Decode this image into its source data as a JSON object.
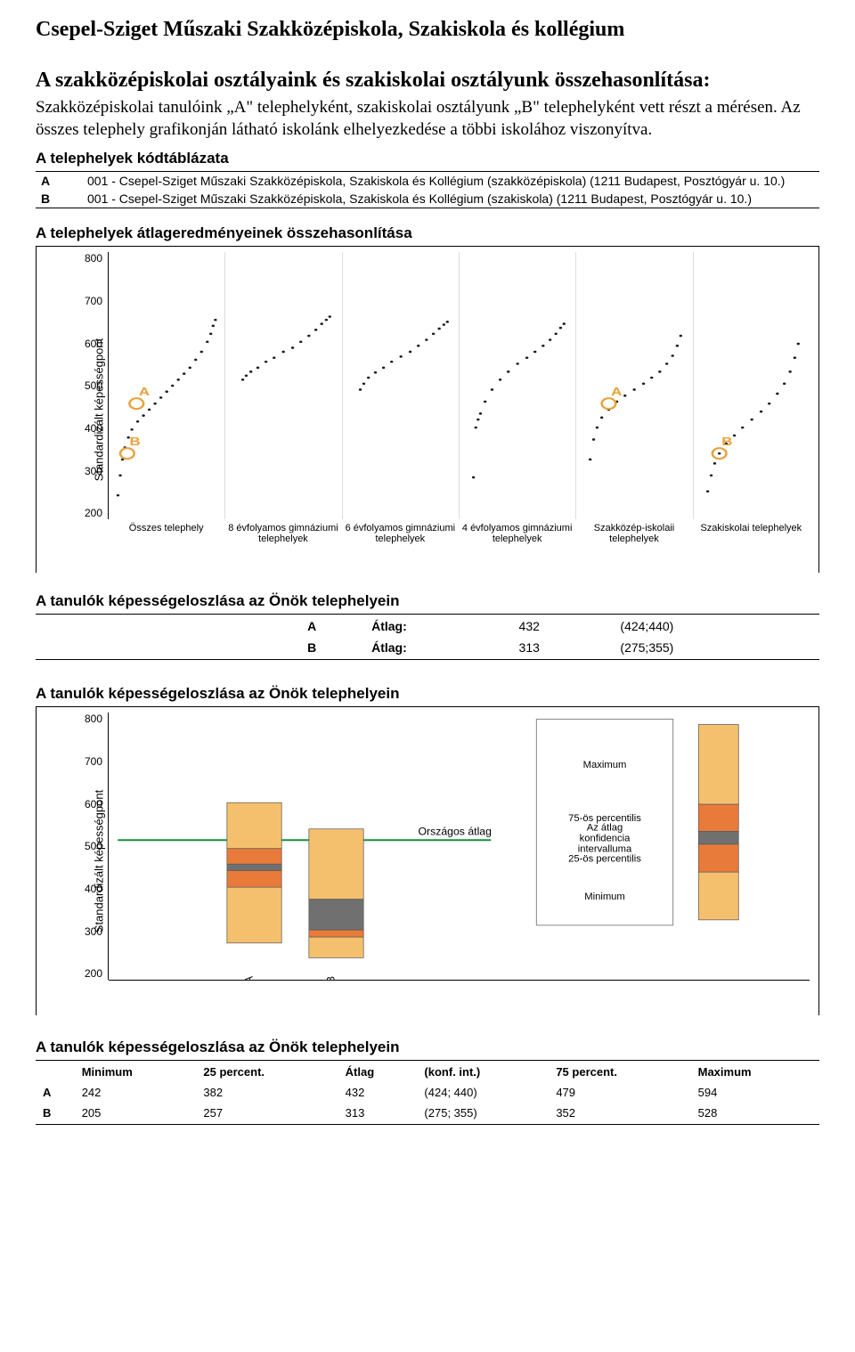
{
  "header": {
    "school": "Csepel-Sziget Műszaki Szakközépiskola, Szakiskola és kollégium",
    "title": "A szakközépiskolai osztályaink és szakiskolai osztályunk összehasonlítása:",
    "intro": "Szakközépiskolai tanulóink „A\" telephelyként, szakiskolai osztályunk „B\" telephelyként vett részt a mérésen. Az összes telephely grafikonján látható iskolánk elhelyezkedése a többi iskolához viszonyítva."
  },
  "code_table": {
    "title": "A telephelyek kódtáblázata",
    "rows": [
      {
        "key": "A",
        "text": "001 - Csepel-Sziget Műszaki Szakközépiskola, Szakiskola és Kollégium (szakközépiskola) (1211 Budapest, Posztógyár u. 10.)"
      },
      {
        "key": "B",
        "text": "001 - Csepel-Sziget Műszaki Szakközépiskola, Szakiskola és Kollégium (szakiskola) (1211 Budapest, Posztógyár u. 10.)"
      }
    ]
  },
  "scatter": {
    "title": "A telephelyek átlageredményeinek összehasonlítása",
    "ylabel": "Standardizált képességpont",
    "ylim": [
      150,
      820
    ],
    "yticks": [
      200,
      300,
      400,
      500,
      600,
      700,
      800
    ],
    "point_color": "#1a1a1a",
    "marker_color": "#e8a23c",
    "marker_label_color": "#e8a23c",
    "panels": [
      {
        "label": "Összes telephely",
        "curve": [
          [
            0.08,
            210
          ],
          [
            0.1,
            260
          ],
          [
            0.12,
            300
          ],
          [
            0.14,
            330
          ],
          [
            0.17,
            355
          ],
          [
            0.2,
            375
          ],
          [
            0.25,
            395
          ],
          [
            0.3,
            410
          ],
          [
            0.35,
            425
          ],
          [
            0.4,
            440
          ],
          [
            0.45,
            455
          ],
          [
            0.5,
            470
          ],
          [
            0.55,
            485
          ],
          [
            0.6,
            500
          ],
          [
            0.65,
            515
          ],
          [
            0.7,
            530
          ],
          [
            0.75,
            550
          ],
          [
            0.8,
            570
          ],
          [
            0.85,
            595
          ],
          [
            0.88,
            615
          ],
          [
            0.9,
            635
          ],
          [
            0.92,
            650
          ]
        ],
        "markers": [
          {
            "label": "A",
            "x": 0.24,
            "y": 440
          },
          {
            "label": "B",
            "x": 0.16,
            "y": 315
          }
        ]
      },
      {
        "label": "8 évfolyamos gimnáziumi telephelyek",
        "curve": [
          [
            0.15,
            500
          ],
          [
            0.18,
            510
          ],
          [
            0.22,
            520
          ],
          [
            0.28,
            530
          ],
          [
            0.35,
            545
          ],
          [
            0.42,
            555
          ],
          [
            0.5,
            570
          ],
          [
            0.58,
            580
          ],
          [
            0.65,
            595
          ],
          [
            0.72,
            610
          ],
          [
            0.78,
            625
          ],
          [
            0.83,
            640
          ],
          [
            0.87,
            650
          ],
          [
            0.9,
            658
          ]
        ],
        "markers": []
      },
      {
        "label": "6 évfolyamos gimnáziumi telephelyek",
        "curve": [
          [
            0.15,
            475
          ],
          [
            0.18,
            490
          ],
          [
            0.22,
            505
          ],
          [
            0.28,
            518
          ],
          [
            0.35,
            530
          ],
          [
            0.42,
            545
          ],
          [
            0.5,
            558
          ],
          [
            0.58,
            570
          ],
          [
            0.65,
            585
          ],
          [
            0.72,
            600
          ],
          [
            0.78,
            615
          ],
          [
            0.83,
            628
          ],
          [
            0.87,
            638
          ],
          [
            0.9,
            645
          ]
        ],
        "markers": []
      },
      {
        "label": "4 évfolyamos gimnáziumi telephelyek",
        "curve": [
          [
            0.12,
            255
          ],
          [
            0.14,
            380
          ],
          [
            0.16,
            400
          ],
          [
            0.18,
            415
          ],
          [
            0.22,
            445
          ],
          [
            0.28,
            475
          ],
          [
            0.35,
            500
          ],
          [
            0.42,
            520
          ],
          [
            0.5,
            540
          ],
          [
            0.58,
            555
          ],
          [
            0.65,
            570
          ],
          [
            0.72,
            585
          ],
          [
            0.78,
            600
          ],
          [
            0.83,
            615
          ],
          [
            0.87,
            630
          ],
          [
            0.9,
            640
          ]
        ],
        "markers": []
      },
      {
        "label": "Szakközép-iskolaii telephelyek",
        "curve": [
          [
            0.12,
            300
          ],
          [
            0.15,
            350
          ],
          [
            0.18,
            380
          ],
          [
            0.22,
            405
          ],
          [
            0.28,
            425
          ],
          [
            0.35,
            445
          ],
          [
            0.42,
            460
          ],
          [
            0.5,
            475
          ],
          [
            0.58,
            490
          ],
          [
            0.65,
            505
          ],
          [
            0.72,
            520
          ],
          [
            0.78,
            540
          ],
          [
            0.83,
            560
          ],
          [
            0.87,
            585
          ],
          [
            0.9,
            610
          ]
        ],
        "markers": [
          {
            "label": "A",
            "x": 0.28,
            "y": 440
          }
        ]
      },
      {
        "label": "Szakiskolai telephelyek",
        "curve": [
          [
            0.12,
            220
          ],
          [
            0.15,
            260
          ],
          [
            0.18,
            290
          ],
          [
            0.22,
            315
          ],
          [
            0.28,
            340
          ],
          [
            0.35,
            360
          ],
          [
            0.42,
            380
          ],
          [
            0.5,
            400
          ],
          [
            0.58,
            420
          ],
          [
            0.65,
            440
          ],
          [
            0.72,
            465
          ],
          [
            0.78,
            490
          ],
          [
            0.83,
            520
          ],
          [
            0.87,
            555
          ],
          [
            0.9,
            590
          ]
        ],
        "markers": [
          {
            "label": "B",
            "x": 0.22,
            "y": 315
          }
        ]
      }
    ]
  },
  "avg_table": {
    "title": "A tanulók képességeloszlása az Önök telephelyein",
    "rows": [
      {
        "key": "A",
        "label": "Átlag:",
        "value": "432",
        "ci": "(424;440)"
      },
      {
        "key": "B",
        "label": "Átlag:",
        "value": "313",
        "ci": "(275;355)"
      }
    ]
  },
  "boxplot": {
    "title": "A tanulók képességeloszlása az Önök telephelyein",
    "ylabel": "Standardizált képességpont",
    "ylim": [
      150,
      820
    ],
    "yticks": [
      200,
      300,
      400,
      500,
      600,
      700,
      800
    ],
    "national_avg": 500,
    "national_label": "Országos átlag",
    "national_color": "#1a8f3c",
    "fill_outer": "#f5c06e",
    "fill_q": "#e87b3a",
    "fill_ci": "#707070",
    "border_color": "#555555",
    "boxes": [
      {
        "label": "A",
        "min": 242,
        "p25": 382,
        "ci_lo": 424,
        "ci_hi": 440,
        "p75": 479,
        "max": 594
      },
      {
        "label": "B",
        "min": 205,
        "p25": 257,
        "ci_lo": 275,
        "ci_hi": 355,
        "p75": 352,
        "max": 528
      }
    ],
    "legend_box": {
      "label": "legend",
      "min": 300,
      "p25": 420,
      "ci_lo": 490,
      "ci_hi": 522,
      "p75": 590,
      "max": 790,
      "items": [
        "Maximum",
        "75-ös percentilis",
        "Az átlag konfidencia intervalluma",
        "25-ös percentilis",
        "Minimum"
      ]
    }
  },
  "stats_table": {
    "title": "A tanulók képességeloszlása az Önök telephelyein",
    "headers": [
      "",
      "Minimum",
      "25 percent.",
      "Átlag",
      "(konf. int.)",
      "75 percent.",
      "Maximum"
    ],
    "rows": [
      [
        "A",
        "242",
        "382",
        "432",
        "(424; 440)",
        "479",
        "594"
      ],
      [
        "B",
        "205",
        "257",
        "313",
        "(275; 355)",
        "352",
        "528"
      ]
    ]
  }
}
